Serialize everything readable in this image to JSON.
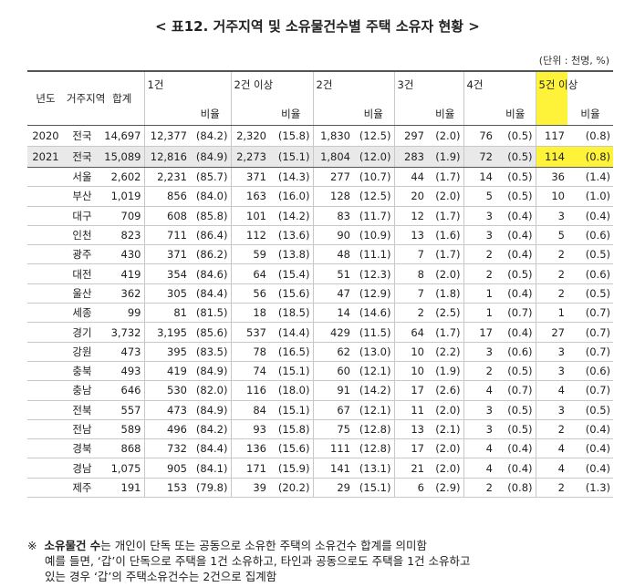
{
  "header": {
    "title": "< 표12. 거주지역 및 소유물건수별 주택 소유자 현황 >",
    "unit": "(단위 : 천명, %)"
  },
  "table": {
    "headers": [
      "년도",
      "거주지역",
      "합계",
      "1건",
      "비율",
      "2건 이상",
      "비율",
      "2건",
      "비율",
      "3건",
      "비율",
      "4건",
      "비율",
      "5건 이상",
      "비율"
    ],
    "rows": [
      [
        "2020",
        "전국",
        "14,697",
        "12,377",
        "(84.2)",
        "2,320",
        "(15.8)",
        "1,830",
        "(12.5)",
        "297",
        "(2.0)",
        "76",
        "(0.5)",
        "117",
        "(0.8)"
      ],
      [
        "2021",
        "전국",
        "15,089",
        "12,816",
        "(84.9)",
        "2,273",
        "(15.1)",
        "1,804",
        "(12.0)",
        "283",
        "(1.9)",
        "72",
        "(0.5)",
        "114",
        "(0.8)"
      ],
      [
        "서울",
        "2,602",
        "2,231",
        "(85.7)",
        "371",
        "(14.3)",
        "277",
        "(10.7)",
        "44",
        "(1.7)",
        "14",
        "(0.5)",
        "36",
        "(1.4)"
      ],
      [
        "부산",
        "1,019",
        "856",
        "(84.0)",
        "163",
        "(16.0)",
        "128",
        "(12.5)",
        "20",
        "(2.0)",
        "5",
        "(0.5)",
        "10",
        "(1.0)"
      ],
      [
        "대구",
        "709",
        "608",
        "(85.8)",
        "101",
        "(14.2)",
        "83",
        "(11.7)",
        "12",
        "(1.7)",
        "3",
        "(0.4)",
        "3",
        "(0.4)"
      ],
      [
        "인천",
        "823",
        "711",
        "(86.4)",
        "112",
        "(13.6)",
        "90",
        "(10.9)",
        "13",
        "(1.6)",
        "3",
        "(0.4)",
        "5",
        "(0.6)"
      ],
      [
        "광주",
        "430",
        "371",
        "(86.2)",
        "59",
        "(13.8)",
        "48",
        "(11.1)",
        "7",
        "(1.7)",
        "2",
        "(0.4)",
        "2",
        "(0.5)"
      ],
      [
        "대전",
        "419",
        "354",
        "(84.6)",
        "64",
        "(15.4)",
        "51",
        "(12.3)",
        "8",
        "(2.0)",
        "2",
        "(0.5)",
        "2",
        "(0.6)"
      ],
      [
        "울산",
        "362",
        "305",
        "(84.4)",
        "56",
        "(15.6)",
        "47",
        "(12.9)",
        "7",
        "(1.8)",
        "1",
        "(0.4)",
        "2",
        "(0.5)"
      ],
      [
        "세종",
        "99",
        "81",
        "(81.5)",
        "18",
        "(18.5)",
        "14",
        "(14.6)",
        "2",
        "(2.5)",
        "1",
        "(0.7)",
        "1",
        "(0.7)"
      ],
      [
        "경기",
        "3,732",
        "3,195",
        "(85.6)",
        "537",
        "(14.4)",
        "429",
        "(11.5)",
        "64",
        "(1.7)",
        "17",
        "(0.4)",
        "27",
        "(0.7)"
      ],
      [
        "강원",
        "473",
        "395",
        "(83.5)",
        "78",
        "(16.5)",
        "62",
        "(13.0)",
        "10",
        "(2.2)",
        "3",
        "(0.6)",
        "3",
        "(0.7)"
      ],
      [
        "충북",
        "493",
        "419",
        "(84.9)",
        "74",
        "(15.1)",
        "60",
        "(12.1)",
        "10",
        "(1.9)",
        "2",
        "(0.5)",
        "3",
        "(0.6)"
      ],
      [
        "충남",
        "646",
        "530",
        "(82.0)",
        "116",
        "(18.0)",
        "91",
        "(14.2)",
        "17",
        "(2.6)",
        "4",
        "(0.7)",
        "4",
        "(0.7)"
      ],
      [
        "전북",
        "557",
        "473",
        "(84.9)",
        "84",
        "(15.1)",
        "67",
        "(12.1)",
        "11",
        "(2.0)",
        "3",
        "(0.5)",
        "3",
        "(0.5)"
      ],
      [
        "전남",
        "589",
        "496",
        "(84.2)",
        "93",
        "(15.8)",
        "75",
        "(12.8)",
        "13",
        "(2.1)",
        "3",
        "(0.5)",
        "2",
        "(0.4)"
      ],
      [
        "경북",
        "868",
        "732",
        "(84.4)",
        "136",
        "(15.6)",
        "111",
        "(12.8)",
        "17",
        "(2.0)",
        "4",
        "(0.4)",
        "4",
        "(0.4)"
      ],
      [
        "경남",
        "1,075",
        "905",
        "(84.1)",
        "171",
        "(15.9)",
        "141",
        "(13.1)",
        "21",
        "(2.0)",
        "4",
        "(0.4)",
        "4",
        "(0.4)"
      ],
      [
        "제주",
        "191",
        "153",
        "(79.8)",
        "39",
        "(20.2)",
        "29",
        "(15.1)",
        "6",
        "(2.9)",
        "2",
        "(0.8)",
        "2",
        "(1.3)"
      ]
    ]
  },
  "note": {
    "mark": "※",
    "term": "소유물건 수",
    "lines": [
      "는 개인이 단독 또는 공동으로 소유한 주택의 소유건수 합계를 의미함",
      "예를 들면, ‘갑’이 단독으로 주택을 1건 소유하고, 타인과 공동으로도 주택을 1건 소유하고",
      "있는 경우 ‘갑’의 주택소유건수는 2건으로 집계함"
    ]
  }
}
